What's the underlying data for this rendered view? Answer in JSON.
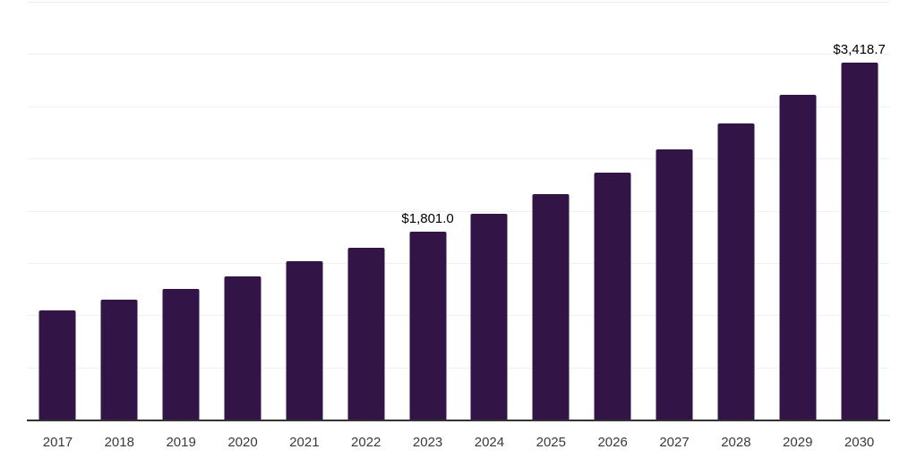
{
  "chart_data": {
    "type": "bar",
    "title": "",
    "xlabel": "",
    "ylabel": "",
    "categories": [
      "2017",
      "2018",
      "2019",
      "2020",
      "2021",
      "2022",
      "2023",
      "2024",
      "2025",
      "2026",
      "2027",
      "2028",
      "2029",
      "2030"
    ],
    "values": [
      1046,
      1149,
      1251,
      1373,
      1512,
      1644,
      1801.0,
      1968,
      2155,
      2360,
      2587,
      2838,
      3110,
      3418.7
    ],
    "data_labels": [
      null,
      null,
      null,
      null,
      null,
      null,
      "$1,801.0",
      null,
      null,
      null,
      null,
      null,
      null,
      "$3,418.7"
    ],
    "ylim": [
      0,
      4000
    ],
    "gridline_step": 500,
    "grid": "horizontal",
    "legend_position": "none",
    "y_axis_ticks_visible": false
  },
  "style": {
    "bar_color": "#321447",
    "axis_color": "#333333",
    "gridline_color": "#f1f1f1",
    "x_label_color": "#3a3a3a",
    "data_label_color": "#000000",
    "background_color": "#ffffff"
  }
}
